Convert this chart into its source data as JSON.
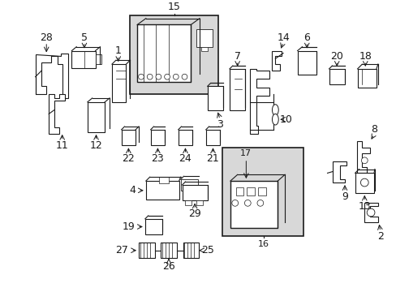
{
  "figsize": [
    4.89,
    3.6
  ],
  "dpi": 100,
  "bg_color": "#ffffff",
  "lc": "#1a1a1a",
  "lw": 0.8,
  "gray": "#d8d8d8"
}
